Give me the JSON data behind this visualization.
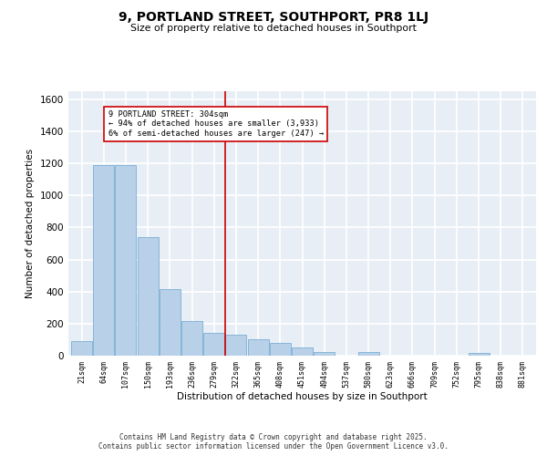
{
  "title": "9, PORTLAND STREET, SOUTHPORT, PR8 1LJ",
  "subtitle": "Size of property relative to detached houses in Southport",
  "xlabel": "Distribution of detached houses by size in Southport",
  "ylabel": "Number of detached properties",
  "categories": [
    "21sqm",
    "64sqm",
    "107sqm",
    "150sqm",
    "193sqm",
    "236sqm",
    "279sqm",
    "322sqm",
    "365sqm",
    "408sqm",
    "451sqm",
    "494sqm",
    "537sqm",
    "580sqm",
    "623sqm",
    "666sqm",
    "709sqm",
    "752sqm",
    "795sqm",
    "838sqm",
    "881sqm"
  ],
  "values": [
    90,
    1190,
    1190,
    740,
    415,
    215,
    145,
    130,
    100,
    80,
    50,
    25,
    0,
    25,
    0,
    0,
    0,
    0,
    18,
    0,
    0
  ],
  "bar_color": "#b8d0e8",
  "bar_edge_color": "#7aafd4",
  "background_color": "#e8eef5",
  "grid_color": "#ffffff",
  "vline_x_index": 7,
  "vline_color": "#cc0000",
  "annotation_text": "9 PORTLAND STREET: 304sqm\n← 94% of detached houses are smaller (3,933)\n6% of semi-detached houses are larger (247) →",
  "annotation_box_color": "#cc0000",
  "ylim": [
    0,
    1650
  ],
  "yticks": [
    0,
    200,
    400,
    600,
    800,
    1000,
    1200,
    1400,
    1600
  ],
  "footer_line1": "Contains HM Land Registry data © Crown copyright and database right 2025.",
  "footer_line2": "Contains public sector information licensed under the Open Government Licence v3.0."
}
